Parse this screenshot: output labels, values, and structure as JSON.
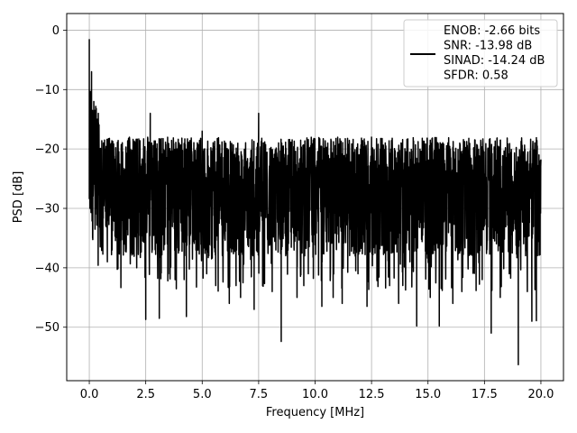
{
  "chart_data": {
    "type": "line",
    "title": "",
    "xlabel": "Frequency [MHz]",
    "ylabel": "PSD [dB]",
    "xlim": [
      -1.0,
      21.0
    ],
    "ylim": [
      -59.0,
      2.8
    ],
    "xticks": [
      0.0,
      2.5,
      5.0,
      7.5,
      10.0,
      12.5,
      15.0,
      17.5,
      20.0
    ],
    "xtick_labels": [
      "0.0",
      "2.5",
      "5.0",
      "7.5",
      "10.0",
      "12.5",
      "15.0",
      "17.5",
      "20.0"
    ],
    "yticks": [
      0,
      -10,
      -20,
      -30,
      -40,
      -50
    ],
    "ytick_labels": [
      "0",
      "−10",
      "−20",
      "−30",
      "−40",
      "−50"
    ],
    "grid": true,
    "legend": {
      "placement": "top-right",
      "entries": [
        "ENOB: -2.66 bits",
        "SNR: -13.98 dB",
        "SINAD: -14.24 dB",
        "SFDR: 0.58"
      ]
    },
    "series": [
      {
        "color": "#000000",
        "x_range": [
          0.0,
          20.0
        ],
        "envelope_upper_db": -18,
        "envelope_lower_db": -38,
        "start_peak_db": -1.5,
        "points": [
          [
            0.0,
            -1.5
          ],
          [
            0.05,
            -28
          ],
          [
            0.1,
            -7
          ],
          [
            0.15,
            -26
          ],
          [
            0.2,
            -12
          ],
          [
            0.3,
            -30
          ],
          [
            0.4,
            -14
          ],
          [
            0.5,
            -34
          ],
          [
            0.6,
            -37
          ],
          [
            0.8,
            -39
          ],
          [
            1.0,
            -37
          ],
          [
            1.3,
            -36
          ],
          [
            1.9,
            -37
          ],
          [
            2.1,
            -40
          ],
          [
            2.5,
            -48.7
          ],
          [
            2.7,
            -14
          ],
          [
            3.1,
            -48.5
          ],
          [
            3.5,
            -41
          ],
          [
            3.8,
            -42
          ],
          [
            4.2,
            -42
          ],
          [
            4.3,
            -48.2
          ],
          [
            5.0,
            -17
          ],
          [
            5.2,
            -41
          ],
          [
            5.6,
            -43
          ],
          [
            6.2,
            -46
          ],
          [
            6.5,
            -43
          ],
          [
            6.7,
            -45
          ],
          [
            7.3,
            -47
          ],
          [
            7.5,
            -14
          ],
          [
            8.1,
            -44
          ],
          [
            8.5,
            -52.4
          ],
          [
            9.2,
            -45
          ],
          [
            9.5,
            -43
          ],
          [
            9.7,
            -41
          ],
          [
            10.3,
            -46.5
          ],
          [
            10.8,
            -45
          ],
          [
            11.2,
            -46
          ],
          [
            11.9,
            -41
          ],
          [
            12.3,
            -46.5
          ],
          [
            12.5,
            -18
          ],
          [
            13.3,
            -43
          ],
          [
            13.7,
            -46
          ],
          [
            14.2,
            -39
          ],
          [
            14.5,
            -49.8
          ],
          [
            15.1,
            -45
          ],
          [
            15.5,
            -49.8
          ],
          [
            16.1,
            -46
          ],
          [
            16.5,
            -44
          ],
          [
            17.4,
            -42
          ],
          [
            17.8,
            -51
          ],
          [
            18.2,
            -45
          ],
          [
            18.6,
            -41
          ],
          [
            19.0,
            -56.3
          ],
          [
            19.4,
            -44
          ],
          [
            19.6,
            -49
          ],
          [
            19.8,
            -48.9
          ],
          [
            20.0,
            -22
          ]
        ]
      }
    ]
  }
}
